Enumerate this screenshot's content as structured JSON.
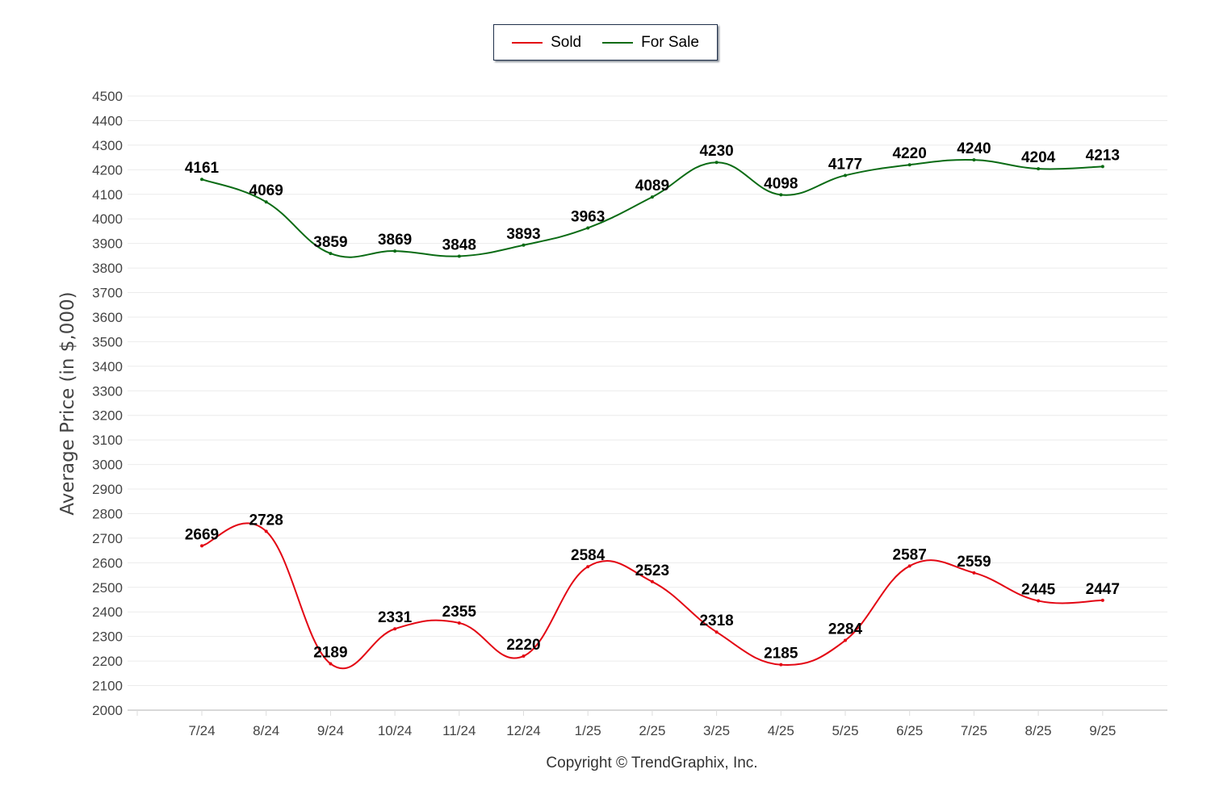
{
  "chart_data": {
    "type": "line",
    "title": "",
    "xlabel": "",
    "ylabel": "Average Price (in $,000)",
    "ylim": [
      2000,
      4500
    ],
    "ytick_step": 100,
    "grid": true,
    "legend_position": "top-center",
    "categories": [
      "7/24",
      "8/24",
      "9/24",
      "10/24",
      "11/24",
      "12/24",
      "1/25",
      "2/25",
      "3/25",
      "4/25",
      "5/25",
      "6/25",
      "7/25",
      "8/25",
      "9/25"
    ],
    "series": [
      {
        "name": "Sold",
        "color": "#e30613",
        "values": [
          2669,
          2728,
          2189,
          2331,
          2355,
          2220,
          2584,
          2523,
          2318,
          2185,
          2284,
          2587,
          2559,
          2445,
          2447
        ]
      },
      {
        "name": "For Sale",
        "color": "#0a6b14",
        "values": [
          4161,
          4069,
          3859,
          3869,
          3848,
          3893,
          3963,
          4089,
          4230,
          4098,
          4177,
          4220,
          4240,
          4204,
          4213
        ]
      }
    ]
  },
  "footer": {
    "copyright": "Copyright © TrendGraphix, Inc."
  }
}
